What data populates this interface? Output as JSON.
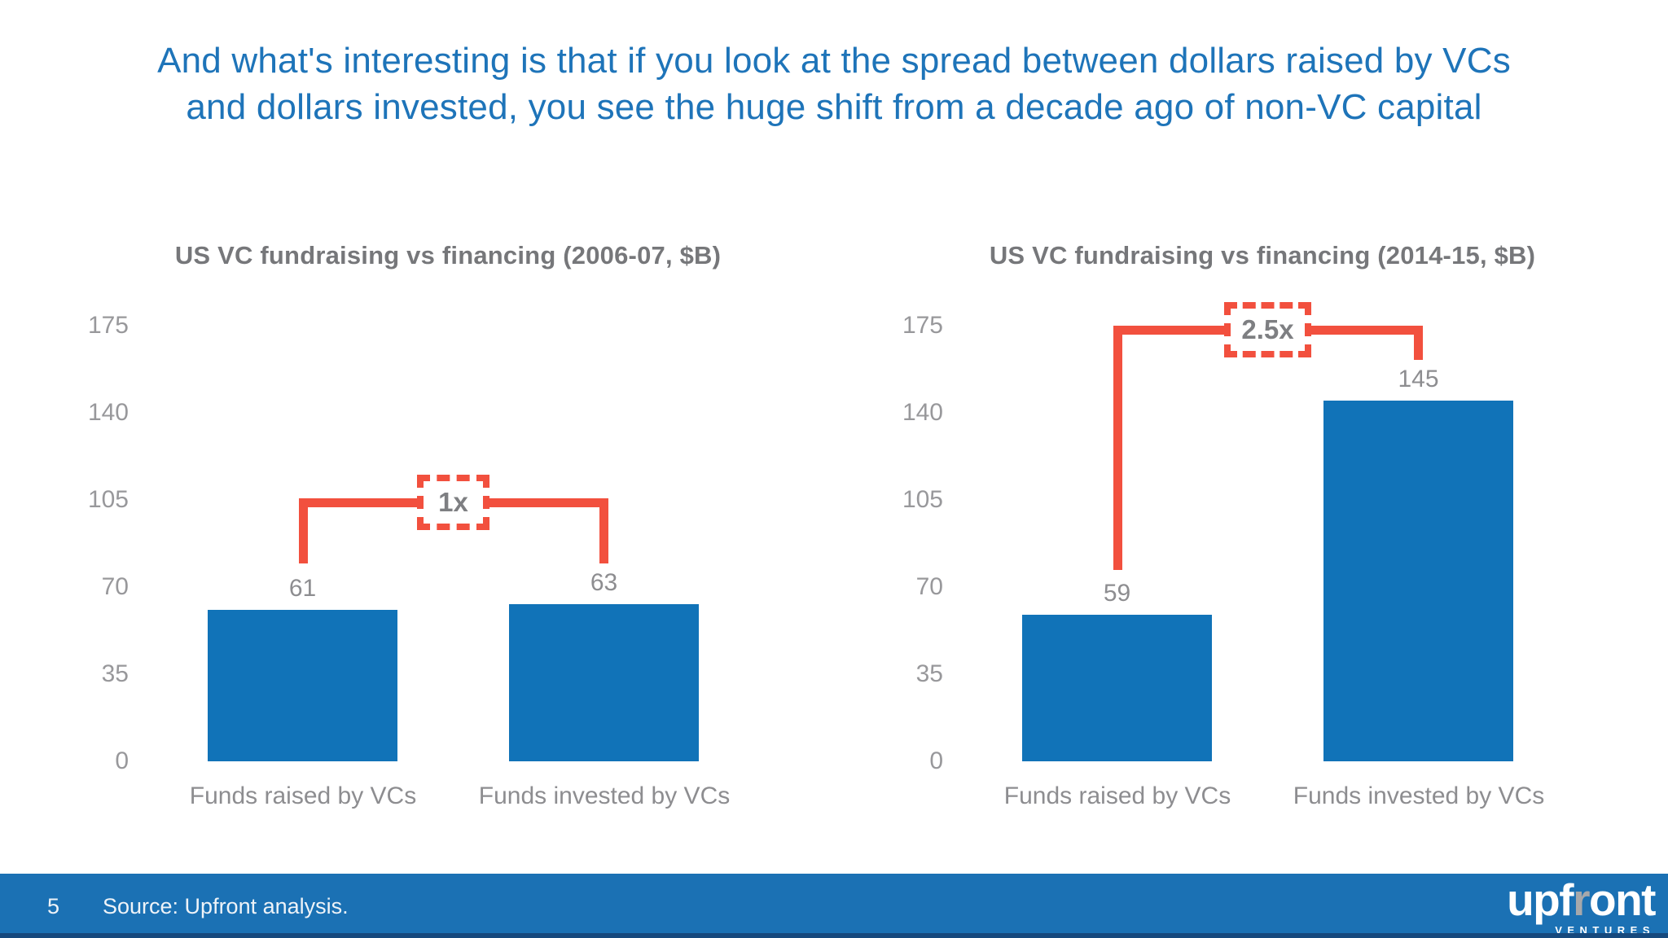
{
  "headline": {
    "line1": "And what's interesting is that if you look at the spread between dollars raised by VCs",
    "line2": "and dollars invested, you see the huge shift from a decade ago of non-VC capital"
  },
  "chart_data": [
    {
      "type": "bar",
      "title": "US VC fundraising vs financing (2006-07, $B)",
      "categories": [
        "Funds raised by VCs",
        "Funds invested by VCs"
      ],
      "values": [
        61,
        63
      ],
      "yticks": [
        175,
        140,
        105,
        70,
        35,
        0
      ],
      "ylim": [
        0,
        175
      ],
      "xlabel": "",
      "ylabel": "",
      "grid": false,
      "legend": "none",
      "annotation_label": "1x",
      "bar_color": "#1173b8",
      "annotation_color": "#f2503e"
    },
    {
      "type": "bar",
      "title": "US VC fundraising vs financing (2014-15, $B)",
      "categories": [
        "Funds raised by VCs",
        "Funds invested by VCs"
      ],
      "values": [
        59,
        145
      ],
      "yticks": [
        175,
        140,
        105,
        70,
        35,
        0
      ],
      "ylim": [
        0,
        175
      ],
      "xlabel": "",
      "ylabel": "",
      "grid": false,
      "legend": "none",
      "annotation_label": "2.5x",
      "bar_color": "#1173b8",
      "annotation_color": "#f2503e"
    }
  ],
  "footer": {
    "page_number": "5",
    "source": "Source: Upfront analysis.",
    "logo_part1": "upf",
    "logo_part2": "r",
    "logo_part3": "ont",
    "logo_subtext": "VENTURES"
  },
  "colors": {
    "headline_blue": "#1e74b9",
    "bar_blue": "#1173b8",
    "annotation_red": "#f2503e",
    "chart_title_gray": "#76777a",
    "axis_gray": "#98989b",
    "footer_blue": "#1b71b4",
    "footer_strip_blue": "#16497d"
  }
}
